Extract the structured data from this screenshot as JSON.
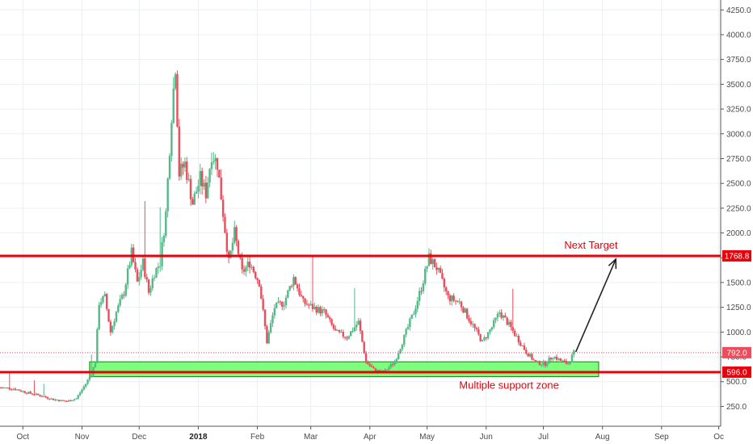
{
  "chart_data": {
    "type": "candlestick",
    "y_axis": {
      "ticks": [
        "250.0",
        "500.0",
        "750.0",
        "1000.0",
        "1250.0",
        "1500.0",
        "1750.0",
        "2000.0",
        "2250.0",
        "2500.0",
        "2750.0",
        "3000.0",
        "3250.0",
        "3500.0",
        "3750.0",
        "4000.0",
        "4250.0"
      ],
      "tick_values": [
        250,
        500,
        750,
        1000,
        1250,
        1500,
        1750,
        2000,
        2250,
        2500,
        2750,
        3000,
        3250,
        3500,
        3750,
        4000,
        4250
      ],
      "range": [
        50,
        4350
      ]
    },
    "x_axis": {
      "ticks": [
        {
          "label": "Oct",
          "date": "2017-10-01"
        },
        {
          "label": "Nov",
          "date": "2017-11-01"
        },
        {
          "label": "Dec",
          "date": "2017-12-01"
        },
        {
          "label": "2018",
          "date": "2018-01-01",
          "bold": true
        },
        {
          "label": "Feb",
          "date": "2018-02-01"
        },
        {
          "label": "Mar",
          "date": "2018-03-01"
        },
        {
          "label": "Apr",
          "date": "2018-04-01"
        },
        {
          "label": "May",
          "date": "2018-05-01"
        },
        {
          "label": "Jun",
          "date": "2018-06-01"
        },
        {
          "label": "Jul",
          "date": "2018-07-01"
        },
        {
          "label": "Aug",
          "date": "2018-08-01"
        },
        {
          "label": "Sep",
          "date": "2018-09-01"
        },
        {
          "label": "Oc",
          "date": "2018-10-01"
        }
      ],
      "range": [
        "2017-09-19",
        "2018-10-02"
      ]
    },
    "price_path": [
      [
        "2017-09-19",
        440
      ],
      [
        "2017-09-26",
        430
      ],
      [
        "2017-10-03",
        390
      ],
      [
        "2017-10-10",
        360
      ],
      [
        "2017-10-17",
        320
      ],
      [
        "2017-10-24",
        300
      ],
      [
        "2017-10-29",
        330
      ],
      [
        "2017-11-03",
        480
      ],
      [
        "2017-11-06",
        580
      ],
      [
        "2017-11-08",
        700
      ],
      [
        "2017-11-10",
        1300
      ],
      [
        "2017-11-13",
        1350
      ],
      [
        "2017-11-16",
        1000
      ],
      [
        "2017-11-19",
        1200
      ],
      [
        "2017-11-23",
        1400
      ],
      [
        "2017-11-27",
        1800
      ],
      [
        "2017-11-30",
        1500
      ],
      [
        "2017-12-03",
        1700
      ],
      [
        "2017-12-06",
        1400
      ],
      [
        "2017-12-09",
        1600
      ],
      [
        "2017-12-12",
        1700
      ],
      [
        "2017-12-15",
        2200
      ],
      [
        "2017-12-18",
        3200
      ],
      [
        "2017-12-20",
        3700
      ],
      [
        "2017-12-22",
        2600
      ],
      [
        "2017-12-25",
        2700
      ],
      [
        "2017-12-29",
        2300
      ],
      [
        "2018-01-02",
        2550
      ],
      [
        "2018-01-05",
        2400
      ],
      [
        "2018-01-08",
        2800
      ],
      [
        "2018-01-11",
        2700
      ],
      [
        "2018-01-14",
        2200
      ],
      [
        "2018-01-17",
        1700
      ],
      [
        "2018-01-20",
        2000
      ],
      [
        "2018-01-24",
        1600
      ],
      [
        "2018-01-28",
        1700
      ],
      [
        "2018-02-02",
        1500
      ],
      [
        "2018-02-06",
        900
      ],
      [
        "2018-02-10",
        1250
      ],
      [
        "2018-02-15",
        1300
      ],
      [
        "2018-02-20",
        1550
      ],
      [
        "2018-02-25",
        1300
      ],
      [
        "2018-03-02",
        1250
      ],
      [
        "2018-03-08",
        1200
      ],
      [
        "2018-03-14",
        1000
      ],
      [
        "2018-03-20",
        950
      ],
      [
        "2018-03-26",
        1100
      ],
      [
        "2018-03-30",
        700
      ],
      [
        "2018-04-03",
        620
      ],
      [
        "2018-04-08",
        590
      ],
      [
        "2018-04-14",
        700
      ],
      [
        "2018-04-18",
        900
      ],
      [
        "2018-04-24",
        1200
      ],
      [
        "2018-04-28",
        1450
      ],
      [
        "2018-05-02",
        1750
      ],
      [
        "2018-05-06",
        1650
      ],
      [
        "2018-05-12",
        1350
      ],
      [
        "2018-05-18",
        1300
      ],
      [
        "2018-05-24",
        1100
      ],
      [
        "2018-05-30",
        900
      ],
      [
        "2018-06-04",
        1050
      ],
      [
        "2018-06-08",
        1200
      ],
      [
        "2018-06-12",
        1100
      ],
      [
        "2018-06-17",
        950
      ],
      [
        "2018-06-22",
        800
      ],
      [
        "2018-06-27",
        690
      ],
      [
        "2018-07-02",
        680
      ],
      [
        "2018-07-06",
        760
      ],
      [
        "2018-07-10",
        710
      ],
      [
        "2018-07-14",
        680
      ],
      [
        "2018-07-17",
        792
      ]
    ],
    "current_price": {
      "value": 792.0,
      "label": "792.0"
    },
    "horizontal_lines": [
      {
        "value": 1768.8,
        "label": "1768.8",
        "color": "#e8000b"
      },
      {
        "value": 596.0,
        "label": "596.0",
        "color": "#e8000b"
      }
    ],
    "support_zone": {
      "y_low": 550,
      "y_high": 700,
      "x_start": "2017-11-05",
      "x_end": "2018-07-30",
      "color": "#66ff66"
    },
    "annotations": [
      {
        "text": "Next Target",
        "x": "2018-07-26",
        "y": 1840
      },
      {
        "text": "Multiple support zone",
        "x": "2018-06-13",
        "y": 430
      }
    ],
    "arrow": {
      "from": {
        "x": "2018-07-18",
        "y": 800
      },
      "to": {
        "x": "2018-08-08",
        "y": 1735
      }
    },
    "colors": {
      "up": "#53b987",
      "down": "#eb4d5c",
      "grid": "#eceff2",
      "axis": "#555555",
      "annotation": "#e8000b"
    }
  }
}
